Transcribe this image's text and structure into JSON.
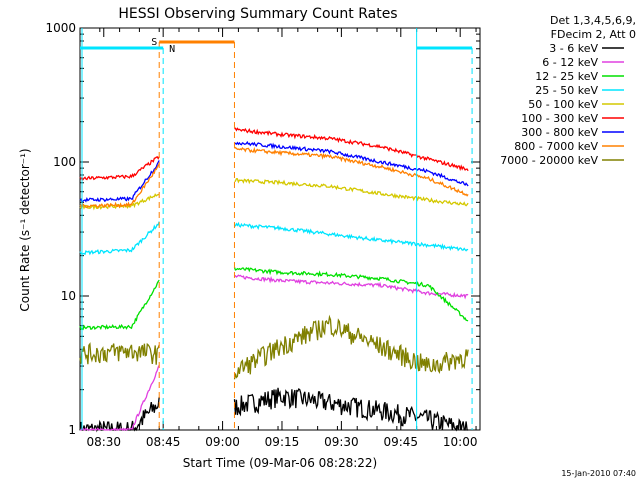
{
  "chart_data": {
    "type": "line",
    "title": "HESSI Observing Summary Count Rates",
    "xlabel": "Start Time (09-Mar-06 08:28:22)",
    "ylabel": "Count Rate (s⁻¹ detector⁻¹)",
    "y_scale": "log",
    "ylim": [
      1,
      1000
    ],
    "xlim": [
      "08:24",
      "10:05"
    ],
    "x_ticks": [
      "08:30",
      "08:45",
      "09:00",
      "09:15",
      "09:30",
      "09:45",
      "10:00"
    ],
    "y_ticks": [
      "1",
      "10",
      "100",
      "1000"
    ],
    "grid": false,
    "legend_position": "right",
    "legend_header": [
      "Det 1,3,4,5,6,9,",
      "FDecim 2, Att 0"
    ],
    "timestamp": "15-Jan-2010 07:40",
    "markers": [
      {
        "label": "S",
        "color": "#ff8000",
        "start": "08:44",
        "end": "09:03"
      },
      {
        "label": "N",
        "color": "#00e5ff",
        "start": "08:45",
        "end": "08:45"
      }
    ],
    "gap": [
      "08:45",
      "09:03"
    ],
    "series": [
      {
        "name": "3 - 6 keV",
        "color": "#000000",
        "pre": [
          1,
          1,
          1.6
        ],
        "post": [
          1.5,
          1.8,
          1.6,
          1.4,
          1.2,
          1
        ]
      },
      {
        "name": "6 - 12 keV",
        "color": "#e040e0",
        "pre": [
          1,
          1,
          3
        ],
        "post": [
          14,
          13,
          12.5,
          12,
          10.5,
          10
        ]
      },
      {
        "name": "12 - 25 keV",
        "color": "#00e000",
        "pre": [
          5.8,
          5.9,
          13
        ],
        "post": [
          16,
          15,
          14.5,
          13.5,
          12,
          6.5
        ]
      },
      {
        "name": "25 - 50 keV",
        "color": "#00e5ff",
        "pre": [
          21,
          22,
          35
        ],
        "post": [
          34,
          32,
          29,
          26,
          24,
          22
        ]
      },
      {
        "name": "50 - 100 keV",
        "color": "#d4c800",
        "pre": [
          46,
          47,
          58
        ],
        "post": [
          73,
          70,
          66,
          58,
          52,
          48
        ]
      },
      {
        "name": "100 - 300 keV",
        "color": "#ff0000",
        "pre": [
          75,
          78,
          110
        ],
        "post": [
          175,
          160,
          150,
          130,
          105,
          88
        ]
      },
      {
        "name": "300 - 800 keV",
        "color": "#0000ff",
        "pre": [
          52,
          53,
          100
        ],
        "post": [
          140,
          130,
          120,
          100,
          85,
          67
        ]
      },
      {
        "name": "800 - 7000 keV",
        "color": "#ff8000",
        "pre": [
          47,
          48,
          95
        ],
        "post": [
          125,
          117,
          110,
          92,
          75,
          57
        ]
      },
      {
        "name": "7000 - 20000 keV",
        "color": "#808000",
        "pre": [
          3.7,
          3.9,
          3.7
        ],
        "post": [
          2.7,
          4.3,
          6.2,
          4.2,
          3.0,
          3.6
        ]
      }
    ]
  }
}
